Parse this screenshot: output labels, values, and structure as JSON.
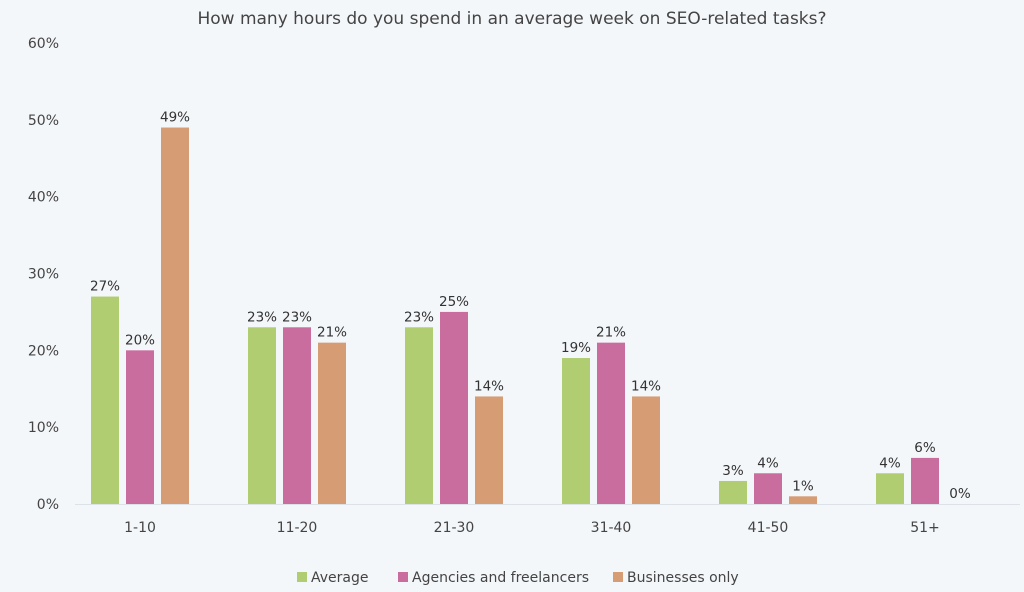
{
  "chart_data": {
    "type": "bar",
    "title": "How many hours do you spend in an average week on SEO-related tasks?",
    "categories": [
      "1-10",
      "11-20",
      "21-30",
      "31-40",
      "41-50",
      "51+"
    ],
    "series": [
      {
        "name": "Average",
        "color": "#b1cd72",
        "values": [
          27,
          23,
          23,
          19,
          3,
          4
        ]
      },
      {
        "name": "Agencies and freelancers",
        "color": "#c96d9f",
        "values": [
          20,
          23,
          25,
          21,
          4,
          6
        ]
      },
      {
        "name": "Businesses only",
        "color": "#d69c74",
        "values": [
          49,
          21,
          14,
          14,
          1,
          0
        ]
      }
    ],
    "ylim": [
      0,
      60
    ],
    "yticks": [
      "0%",
      "10%",
      "20%",
      "30%",
      "40%",
      "50%",
      "60%"
    ],
    "value_suffix": "%",
    "xlabel": "",
    "ylabel": "",
    "grid": false,
    "legend": "bottom"
  }
}
